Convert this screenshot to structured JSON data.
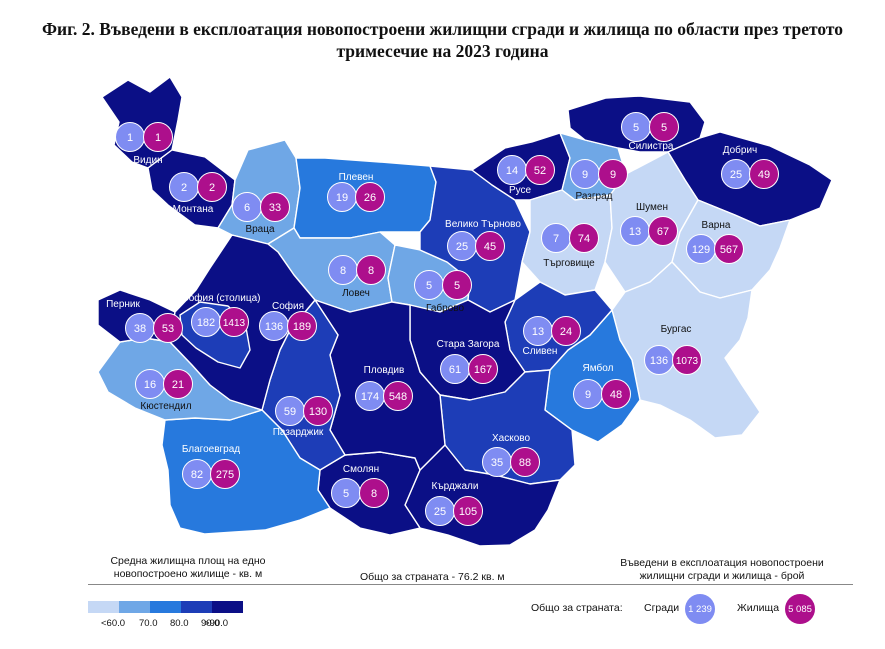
{
  "title": "Фиг. 2. Въведени в експлоатация новопостроени жилищни сгради и жилища по области през третото тримесечие на 2023 година",
  "colors": {
    "class1": "#c5d8f5",
    "class2": "#6fa7e6",
    "class3": "#2779dd",
    "class4": "#1d3db7",
    "class5": "#0b0f86",
    "buildings_circle": "#7f8cf2",
    "dwellings_circle": "#ad0f8c",
    "border": "#ffffff"
  },
  "legend": {
    "area_title": "Средна жилищна площ на едно новопостроено жилище - кв. м",
    "country_average": "Общо за страната - 76.2 кв. м",
    "scale_labels": [
      "<60.0",
      "70.0",
      "80.0",
      "90.0",
      ">90.0"
    ],
    "counts_title": "Въведени в експлоатация новопостроени жилищни сгради и жилища - брой",
    "country_total_label": "Общо за страната:",
    "buildings_label": "Сгради",
    "buildings_total": "1 239",
    "dwellings_label": "Жилища",
    "dwellings_total": "5 085"
  },
  "regions": [
    {
      "name": "Видин",
      "buildings": "1",
      "dwellings": "1",
      "area_class": 5
    },
    {
      "name": "Монтана",
      "buildings": "2",
      "dwellings": "2",
      "area_class": 5
    },
    {
      "name": "Враца",
      "buildings": "6",
      "dwellings": "33",
      "area_class": 2
    },
    {
      "name": "Плевен",
      "buildings": "19",
      "dwellings": "26",
      "area_class": 3
    },
    {
      "name": "Ловеч",
      "buildings": "8",
      "dwellings": "8",
      "area_class": 2
    },
    {
      "name": "Габрово",
      "buildings": "5",
      "dwellings": "5",
      "area_class": 2
    },
    {
      "name": "Велико Търново",
      "buildings": "25",
      "dwellings": "45",
      "area_class": 4
    },
    {
      "name": "Русе",
      "buildings": "14",
      "dwellings": "52",
      "area_class": 5
    },
    {
      "name": "Разград",
      "buildings": "9",
      "dwellings": "9",
      "area_class": 2
    },
    {
      "name": "Силистра",
      "buildings": "5",
      "dwellings": "5",
      "area_class": 5
    },
    {
      "name": "Добрич",
      "buildings": "25",
      "dwellings": "49",
      "area_class": 5
    },
    {
      "name": "Търговище",
      "buildings": "7",
      "dwellings": "74",
      "area_class": 1
    },
    {
      "name": "Шумен",
      "buildings": "13",
      "dwellings": "67",
      "area_class": 1
    },
    {
      "name": "Варна",
      "buildings": "129",
      "dwellings": "567",
      "area_class": 1
    },
    {
      "name": "Бургас",
      "buildings": "136",
      "dwellings": "1073",
      "area_class": 1
    },
    {
      "name": "Ямбол",
      "buildings": "9",
      "dwellings": "48",
      "area_class": 3
    },
    {
      "name": "Сливен",
      "buildings": "13",
      "dwellings": "24",
      "area_class": 4
    },
    {
      "name": "Стара Загора",
      "buildings": "61",
      "dwellings": "167",
      "area_class": 5
    },
    {
      "name": "Хасково",
      "buildings": "35",
      "dwellings": "88",
      "area_class": 4
    },
    {
      "name": "Кърджали",
      "buildings": "25",
      "dwellings": "105",
      "area_class": 5
    },
    {
      "name": "Смолян",
      "buildings": "5",
      "dwellings": "8",
      "area_class": 5
    },
    {
      "name": "Пловдив",
      "buildings": "174",
      "dwellings": "548",
      "area_class": 5
    },
    {
      "name": "Пазарджик",
      "buildings": "59",
      "dwellings": "130",
      "area_class": 4
    },
    {
      "name": "Благоевград",
      "buildings": "82",
      "dwellings": "275",
      "area_class": 3
    },
    {
      "name": "Кюстендил",
      "buildings": "16",
      "dwellings": "21",
      "area_class": 2
    },
    {
      "name": "Перник",
      "buildings": "38",
      "dwellings": "53",
      "area_class": 5
    },
    {
      "name": "София (столица)",
      "buildings": "182",
      "dwellings": "1413",
      "area_class": 4
    },
    {
      "name": "София",
      "buildings": "136",
      "dwellings": "189",
      "area_class": 5
    }
  ]
}
